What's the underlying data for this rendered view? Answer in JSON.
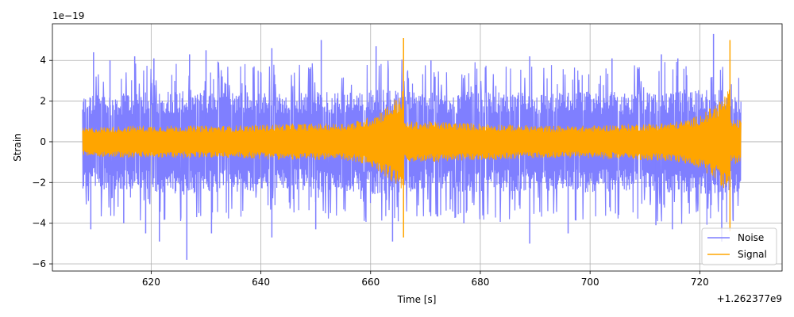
{
  "chart_data": {
    "type": "line",
    "xlabel": "Time [s]",
    "ylabel": "Strain",
    "x_offset_label": "+1.262377e9",
    "y_scale_label": "1e−19",
    "xlim": [
      602,
      735
    ],
    "ylim": [
      -6.35,
      5.8
    ],
    "xticks": [
      620,
      640,
      660,
      680,
      700,
      720
    ],
    "xtick_labels": [
      "620",
      "640",
      "660",
      "680",
      "700",
      "720"
    ],
    "yticks": [
      -6,
      -4,
      -2,
      0,
      2,
      4
    ],
    "ytick_labels": [
      "−6",
      "−4",
      "−2",
      "0",
      "2",
      "4"
    ],
    "grid": true,
    "legend_position": "lower-right",
    "series": [
      {
        "name": "Noise",
        "color": "#7f7fff",
        "x_range": [
          607.5,
          727.5
        ],
        "envelope_upper": [
          2.3,
          2.4,
          2.6,
          2.5,
          2.4,
          2.5,
          2.6,
          2.4,
          2.5,
          2.4,
          2.5,
          2.4,
          2.6,
          2.5
        ],
        "envelope_lower": [
          -2.3,
          -2.4,
          -2.6,
          -2.5,
          -2.4,
          -2.5,
          -2.6,
          -2.4,
          -2.5,
          -2.4,
          -2.5,
          -2.4,
          -2.6,
          -2.5
        ],
        "extreme_peaks_x": [
          609.5,
          612.5,
          617,
          620.5,
          627,
          630,
          642,
          651,
          661,
          671,
          689,
          704,
          713,
          716,
          722.5
        ],
        "extreme_peaks_y": [
          4.4,
          4.0,
          4.2,
          4.1,
          4.3,
          4.5,
          4.6,
          5.0,
          4.7,
          4.0,
          4.2,
          4.1,
          4.3,
          4.1,
          5.3
        ],
        "extreme_troughs_x": [
          609,
          615,
          619,
          621.5,
          626.5,
          631,
          642,
          650,
          664,
          677,
          689,
          696,
          712,
          715,
          724
        ],
        "extreme_troughs_y": [
          -4.3,
          -4.0,
          -4.5,
          -4.9,
          -5.8,
          -4.5,
          -4.7,
          -4.3,
          -4.9,
          -4.0,
          -5.0,
          -4.5,
          -4.1,
          -4.3,
          -4.9
        ]
      },
      {
        "name": "Signal",
        "color": "#ffa500",
        "x_range": [
          607.5,
          727.5
        ],
        "envelope_upper": [
          0.7,
          0.8,
          0.8,
          0.8,
          0.9,
          0.9,
          1.0,
          1.0,
          0.9,
          0.8,
          0.8,
          0.9,
          1.0,
          1.1
        ],
        "envelope_lower": [
          -0.7,
          -0.8,
          -0.8,
          -0.8,
          -0.9,
          -0.9,
          -1.0,
          -1.0,
          -0.9,
          -0.8,
          -0.8,
          -0.9,
          -1.0,
          -1.1
        ],
        "chirps": [
          {
            "start": 652,
            "end": 666,
            "peak_high": 5.1,
            "peak_low": -4.7
          },
          {
            "start": 712,
            "end": 725.5,
            "peak_high": 5.0,
            "peak_low": -4.4
          }
        ]
      }
    ]
  }
}
